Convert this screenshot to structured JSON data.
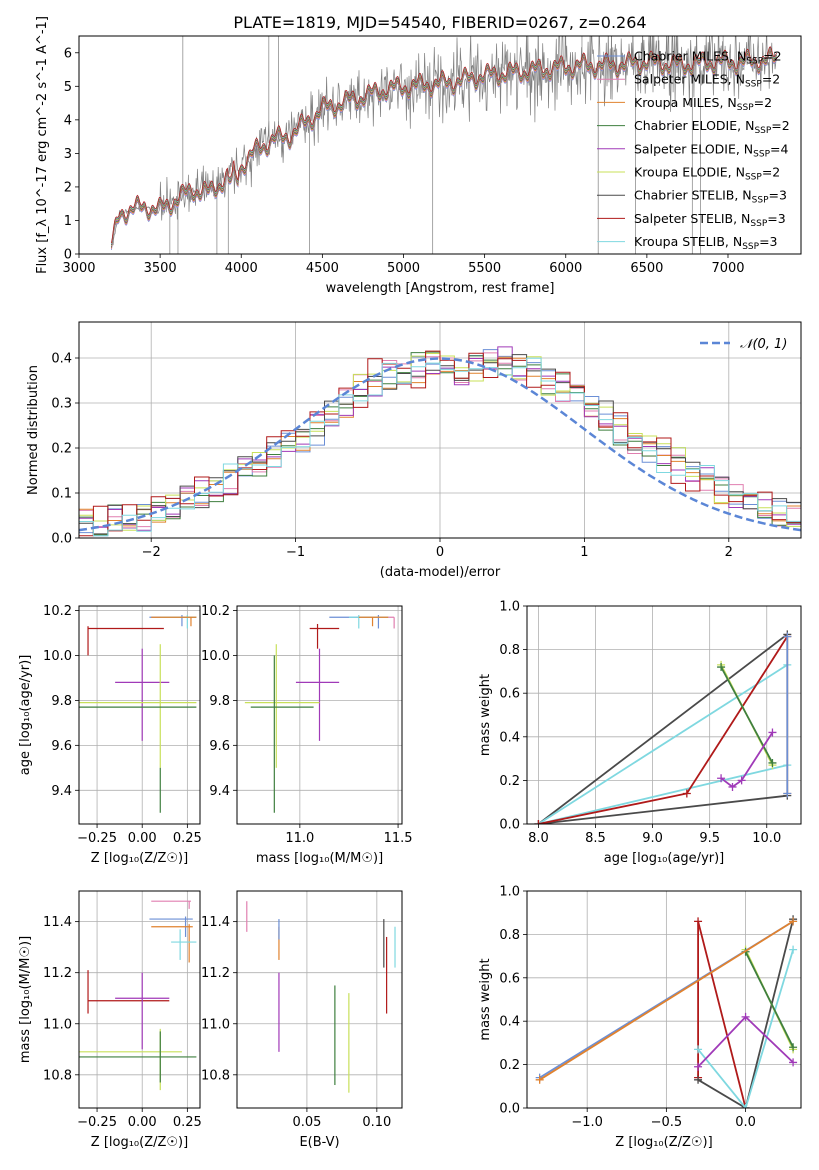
{
  "figure_title": "PLATE=1819, MJD=54540, FIBERID=0267, z=0.264",
  "colors": {
    "chabrier_miles": "#6b8fd6",
    "salpeter_miles": "#e07fb0",
    "kroupa_miles": "#e0822f",
    "chabrier_elodie": "#3f7f3f",
    "salpeter_elodie": "#a03ab8",
    "kroupa_elodie": "#c8e05a",
    "chabrier_stelib": "#4a4a4a",
    "salpeter_stelib": "#b01a1a",
    "kroupa_stelib": "#7fd8e0",
    "data": "#808080",
    "normal": "#5b86d6"
  },
  "chart_data": [
    {
      "type": "line",
      "title": "PLATE=1819, MJD=54540, FIBERID=0267, z=0.264",
      "xlabel": "wavelength [Angstrom, rest frame]",
      "ylabel": "Flux [f_λ 10^-17 erg cm^-2 s^-1 A^-1]",
      "xlim": [
        3000,
        7450
      ],
      "ylim": [
        0,
        6.5
      ],
      "xticks": [
        3000,
        3500,
        4000,
        4500,
        5000,
        5500,
        6000,
        6500,
        7000
      ],
      "yticks": [
        0,
        1,
        2,
        3,
        4,
        5,
        6
      ],
      "grid": false,
      "legend_position": "top-right",
      "series": [
        {
          "name": "Chabrier MILES, N_SSP=2",
          "key": "chabrier_miles"
        },
        {
          "name": "Salpeter MILES, N_SSP=2",
          "key": "salpeter_miles"
        },
        {
          "name": "Kroupa MILES, N_SSP=2",
          "key": "kroupa_miles"
        },
        {
          "name": "Chabrier ELODIE, N_SSP=2",
          "key": "chabrier_elodie"
        },
        {
          "name": "Salpeter ELODIE, N_SSP=4",
          "key": "salpeter_elodie"
        },
        {
          "name": "Kroupa ELODIE, N_SSP=2",
          "key": "kroupa_elodie"
        },
        {
          "name": "Chabrier STELIB, N_SSP=3",
          "key": "chabrier_stelib"
        },
        {
          "name": "Salpeter STELIB, N_SSP=3",
          "key": "salpeter_stelib"
        },
        {
          "name": "Kroupa STELIB, N_SSP=3",
          "key": "kroupa_stelib"
        }
      ],
      "continuum_knots": {
        "x": [
          3200,
          3250,
          3400,
          3500,
          3600,
          3700,
          3800,
          3900,
          4000,
          4100,
          4200,
          4300,
          4400,
          4500,
          4700,
          4900,
          5100,
          5300,
          5500,
          5700,
          5900,
          6100,
          6300,
          6500,
          6700,
          6900,
          7100,
          7300
        ],
        "y": [
          0.2,
          1.2,
          1.4,
          1.3,
          1.6,
          1.9,
          1.8,
          2.2,
          2.6,
          3.1,
          3.4,
          3.5,
          3.9,
          4.3,
          4.6,
          4.9,
          5.0,
          5.1,
          5.3,
          5.4,
          5.5,
          5.6,
          5.6,
          5.7,
          5.6,
          5.7,
          5.7,
          5.8
        ]
      }
    },
    {
      "type": "line",
      "xlabel": "(data-model)/error",
      "ylabel": "Normed distribution",
      "xlim": [
        -2.5,
        2.5
      ],
      "ylim": [
        0,
        0.48
      ],
      "xticks": [
        -2,
        -1,
        0,
        1,
        2
      ],
      "yticks": [
        0.0,
        0.1,
        0.2,
        0.3,
        0.4
      ],
      "grid": true,
      "legend_position": "top-right",
      "legend": "𝒩(0, 1)",
      "bin_width": 0.1,
      "bin_start": -2.5,
      "reference_values": [
        0.03,
        0.03,
        0.04,
        0.04,
        0.05,
        0.06,
        0.07,
        0.09,
        0.1,
        0.11,
        0.13,
        0.15,
        0.16,
        0.18,
        0.2,
        0.22,
        0.24,
        0.27,
        0.3,
        0.33,
        0.35,
        0.36,
        0.37,
        0.38,
        0.38,
        0.37,
        0.37,
        0.38,
        0.39,
        0.39,
        0.38,
        0.37,
        0.35,
        0.33,
        0.31,
        0.29,
        0.27,
        0.24,
        0.22,
        0.2,
        0.18,
        0.17,
        0.15,
        0.13,
        0.11,
        0.09,
        0.08,
        0.07,
        0.06,
        0.05
      ]
    },
    {
      "type": "scatter",
      "xlabel": "Z [log₁₀(Z/Z☉)]",
      "ylabel": "age [log₁₀(age/yr)]",
      "xlim": [
        -0.35,
        0.32
      ],
      "ylim": [
        9.25,
        10.22
      ],
      "xticks": [
        -0.25,
        0.0,
        0.25
      ],
      "xticklabels": [
        "−0.25",
        "0.00",
        "0.25"
      ],
      "yticks": [
        9.4,
        9.6,
        9.8,
        10.0,
        10.2
      ],
      "grid": true,
      "crosses": [
        {
          "key": "salpeter_stelib",
          "x": [
            -0.3,
            0.12
          ],
          "y": [
            10.12,
            10.12
          ],
          "ex": [
            -0.3,
            -0.3
          ],
          "ey": [
            10.0,
            10.13
          ]
        },
        {
          "key": "salpeter_elodie",
          "x": [
            -0.15,
            0.15
          ],
          "y": [
            9.88,
            9.88
          ],
          "ex": [
            0.0,
            0.0
          ],
          "ey": [
            9.62,
            10.03
          ]
        },
        {
          "key": "kroupa_elodie",
          "x": [
            -0.35,
            0.3
          ],
          "y": [
            9.79,
            9.79
          ],
          "ex": [
            0.1,
            0.1
          ],
          "ey": [
            9.5,
            10.05
          ]
        },
        {
          "key": "chabrier_elodie",
          "x": [
            -0.35,
            0.3
          ],
          "y": [
            9.77,
            9.77
          ],
          "ex": [
            0.1,
            0.1
          ],
          "ey": [
            9.3,
            9.5
          ]
        },
        {
          "key": "chabrier_miles",
          "x": [
            0.04,
            0.3
          ],
          "y": [
            10.17,
            10.17
          ],
          "ex": [
            0.22,
            0.22
          ],
          "ey": [
            10.13,
            10.18
          ]
        },
        {
          "key": "kroupa_stelib",
          "x": [
            0.1,
            0.3
          ],
          "y": [
            10.17,
            10.17
          ],
          "ex": [
            0.25,
            0.25
          ],
          "ey": [
            10.12,
            10.18
          ]
        },
        {
          "key": "kroupa_miles",
          "x": [
            0.05,
            0.3
          ],
          "y": [
            10.17,
            10.17
          ],
          "ex": [
            0.27,
            0.27
          ],
          "ey": [
            10.13,
            10.17
          ]
        }
      ]
    },
    {
      "type": "scatter",
      "xlabel": "mass [log₁₀(M/M☉)]",
      "xlim": [
        10.68,
        11.52
      ],
      "ylim": [
        9.25,
        10.22
      ],
      "xticks": [
        11.0,
        11.5
      ],
      "xticklabels": [
        "11.0",
        "11.5"
      ],
      "yticks": [
        9.4,
        9.6,
        9.8,
        10.0,
        10.2
      ],
      "grid": true,
      "crosses": [
        {
          "key": "salpeter_stelib",
          "x": [
            11.05,
            11.2
          ],
          "y": [
            10.12,
            10.12
          ],
          "ex": [
            11.09,
            11.09
          ],
          "ey": [
            10.03,
            10.14
          ]
        },
        {
          "key": "salpeter_elodie",
          "x": [
            10.98,
            11.2
          ],
          "y": [
            9.88,
            9.88
          ],
          "ex": [
            11.1,
            11.1
          ],
          "ey": [
            9.62,
            10.03
          ]
        },
        {
          "key": "kroupa_elodie",
          "x": [
            10.72,
            11.1
          ],
          "y": [
            9.79,
            9.79
          ],
          "ex": [
            10.88,
            10.88
          ],
          "ey": [
            9.5,
            10.05
          ]
        },
        {
          "key": "chabrier_elodie",
          "x": [
            10.75,
            11.07
          ],
          "y": [
            9.77,
            9.77
          ],
          "ex": [
            10.87,
            10.87
          ],
          "ey": [
            9.3,
            10.0
          ]
        },
        {
          "key": "chabrier_miles",
          "x": [
            11.15,
            11.45
          ],
          "y": [
            10.17,
            10.17
          ],
          "ex": [
            11.4,
            11.4
          ],
          "ey": [
            10.12,
            10.18
          ]
        },
        {
          "key": "salpeter_miles",
          "x": [
            11.3,
            11.48
          ],
          "y": [
            10.17,
            10.17
          ],
          "ex": [
            11.48,
            11.48
          ],
          "ey": [
            10.12,
            10.17
          ]
        },
        {
          "key": "kroupa_stelib",
          "x": [
            11.25,
            11.45
          ],
          "y": [
            10.17,
            10.17
          ],
          "ex": [
            11.3,
            11.3
          ],
          "ey": [
            10.12,
            10.18
          ]
        },
        {
          "key": "kroupa_miles",
          "x": [
            11.3,
            11.45
          ],
          "y": [
            10.17,
            10.17
          ],
          "ex": [
            11.37,
            11.37
          ],
          "ey": [
            10.13,
            10.17
          ]
        }
      ]
    },
    {
      "type": "line",
      "xlabel": "age [log₁₀(age/yr)]",
      "ylabel": "mass weight",
      "xlim": [
        7.9,
        10.3
      ],
      "ylim": [
        0,
        1.0
      ],
      "xticks": [
        8.0,
        8.5,
        9.0,
        9.5,
        10.0
      ],
      "xticklabels": [
        "8.0",
        "8.5",
        "9.0",
        "9.5",
        "10.0"
      ],
      "yticks": [
        0.0,
        0.2,
        0.4,
        0.6,
        0.8,
        1.0
      ],
      "grid": true,
      "series": [
        {
          "key": "chabrier_stelib",
          "x": [
            10.18,
            8.0,
            10.18
          ],
          "y": [
            0.13,
            0.0,
            0.87
          ]
        },
        {
          "key": "kroupa_stelib",
          "x": [
            10.18,
            8.0,
            10.18
          ],
          "y": [
            0.27,
            0.0,
            0.73
          ]
        },
        {
          "key": "salpeter_stelib",
          "x": [
            10.18,
            9.3,
            8.0
          ],
          "y": [
            0.86,
            0.14,
            0.0
          ]
        },
        {
          "key": "kroupa_elodie",
          "x": [
            9.6,
            10.05
          ],
          "y": [
            0.73,
            0.27
          ]
        },
        {
          "key": "chabrier_elodie",
          "x": [
            9.6,
            10.05
          ],
          "y": [
            0.72,
            0.28
          ]
        },
        {
          "key": "salpeter_elodie",
          "x": [
            9.6,
            9.7,
            9.78,
            10.05
          ],
          "y": [
            0.21,
            0.17,
            0.2,
            0.42
          ]
        },
        {
          "key": "kroupa_miles",
          "x": [
            10.18,
            10.18
          ],
          "y": [
            0.86,
            0.14
          ]
        },
        {
          "key": "chabrier_miles",
          "x": [
            10.18,
            10.18
          ],
          "y": [
            0.86,
            0.14
          ]
        }
      ]
    },
    {
      "type": "scatter",
      "xlabel": "Z [log₁₀(Z/Z☉)]",
      "ylabel": "mass [log₁₀(M/M☉)]",
      "xlim": [
        -0.35,
        0.32
      ],
      "ylim": [
        10.67,
        11.52
      ],
      "xticks": [
        -0.25,
        0.0,
        0.25
      ],
      "xticklabels": [
        "−0.25",
        "0.00",
        "0.25"
      ],
      "yticks": [
        10.8,
        11.0,
        11.2,
        11.4
      ],
      "grid": true,
      "crosses": [
        {
          "key": "salpeter_miles",
          "x": [
            0.05,
            0.27
          ],
          "y": [
            11.48,
            11.48
          ],
          "ex": [
            0.26,
            0.26
          ],
          "ey": [
            11.45,
            11.48
          ]
        },
        {
          "key": "chabrier_miles",
          "x": [
            0.04,
            0.28
          ],
          "y": [
            11.41,
            11.41
          ],
          "ex": [
            0.24,
            0.24
          ],
          "ey": [
            11.34,
            11.42
          ]
        },
        {
          "key": "kroupa_miles",
          "x": [
            0.05,
            0.28
          ],
          "y": [
            11.38,
            11.38
          ],
          "ex": [
            0.26,
            0.26
          ],
          "ey": [
            11.24,
            11.39
          ]
        },
        {
          "key": "kroupa_stelib",
          "x": [
            0.16,
            0.3
          ],
          "y": [
            11.32,
            11.32
          ],
          "ex": [
            0.21,
            0.21
          ],
          "ey": [
            11.25,
            11.37
          ]
        },
        {
          "key": "salpeter_stelib",
          "x": [
            -0.3,
            0.15
          ],
          "y": [
            11.09,
            11.09
          ],
          "ex": [
            -0.3,
            -0.3
          ],
          "ey": [
            11.04,
            11.21
          ]
        },
        {
          "key": "salpeter_elodie",
          "x": [
            -0.15,
            0.15
          ],
          "y": [
            11.1,
            11.1
          ],
          "ex": [
            0.0,
            0.0
          ],
          "ey": [
            10.9,
            11.2
          ]
        },
        {
          "key": "kroupa_elodie",
          "x": [
            -0.35,
            0.22
          ],
          "y": [
            10.89,
            10.89
          ],
          "ex": [
            0.1,
            0.1
          ],
          "ey": [
            10.74,
            10.98
          ]
        },
        {
          "key": "chabrier_elodie",
          "x": [
            -0.35,
            0.3
          ],
          "y": [
            10.87,
            10.87
          ],
          "ex": [
            0.1,
            0.1
          ],
          "ey": [
            10.77,
            10.97
          ]
        }
      ]
    },
    {
      "type": "scatter",
      "xlabel": "E(B-V)",
      "xlim": [
        0.0,
        0.118
      ],
      "ylim": [
        10.67,
        11.52
      ],
      "xticks": [
        0.05,
        0.1
      ],
      "xticklabels": [
        "0.05",
        "0.10"
      ],
      "yticks": [
        10.8,
        11.0,
        11.2,
        11.4
      ],
      "grid": true,
      "crosses": [
        {
          "key": "salpeter_miles",
          "ex": [
            0.007,
            0.007
          ],
          "ey": [
            11.36,
            11.48
          ]
        },
        {
          "key": "kroupa_miles",
          "ex": [
            0.03,
            0.03
          ],
          "ey": [
            11.25,
            11.38
          ]
        },
        {
          "key": "chabrier_miles",
          "ex": [
            0.03,
            0.03
          ],
          "ey": [
            11.33,
            11.41
          ]
        },
        {
          "key": "salpeter_elodie",
          "ex": [
            0.03,
            0.03
          ],
          "ey": [
            10.89,
            11.2
          ]
        },
        {
          "key": "chabrier_elodie",
          "ex": [
            0.07,
            0.07
          ],
          "ey": [
            10.76,
            11.15
          ]
        },
        {
          "key": "kroupa_elodie",
          "ex": [
            0.08,
            0.08
          ],
          "ey": [
            10.73,
            11.12
          ]
        },
        {
          "key": "chabrier_stelib",
          "ex": [
            0.105,
            0.105
          ],
          "ey": [
            11.22,
            11.41
          ]
        },
        {
          "key": "salpeter_stelib",
          "ex": [
            0.107,
            0.107
          ],
          "ey": [
            11.04,
            11.34
          ]
        },
        {
          "key": "kroupa_stelib",
          "ex": [
            0.113,
            0.113
          ],
          "ey": [
            11.22,
            11.38
          ]
        }
      ]
    },
    {
      "type": "line",
      "xlabel": "Z [log₁₀(Z/Z☉)]",
      "ylabel": "mass weight",
      "xlim": [
        -1.38,
        0.35
      ],
      "ylim": [
        0,
        1.0
      ],
      "xticks": [
        -1.0,
        -0.5,
        0.0
      ],
      "xticklabels": [
        "−1.0",
        "−0.5",
        "0.0"
      ],
      "yticks": [
        0.0,
        0.2,
        0.4,
        0.6,
        0.8,
        1.0
      ],
      "grid": true,
      "series": [
        {
          "key": "salpeter_stelib",
          "x": [
            -0.3,
            -0.3,
            0.0
          ],
          "y": [
            0.14,
            0.86,
            0.0
          ]
        },
        {
          "key": "chabrier_stelib",
          "x": [
            -0.3,
            0.0,
            0.3
          ],
          "y": [
            0.13,
            0.0,
            0.87
          ]
        },
        {
          "key": "kroupa_stelib",
          "x": [
            -0.3,
            0.0,
            0.3
          ],
          "y": [
            0.27,
            0.0,
            0.73
          ]
        },
        {
          "key": "salpeter_elodie",
          "x": [
            -0.3,
            0.0,
            0.3
          ],
          "y": [
            0.19,
            0.42,
            0.21
          ]
        },
        {
          "key": "kroupa_elodie",
          "x": [
            0.0,
            0.3
          ],
          "y": [
            0.73,
            0.27
          ]
        },
        {
          "key": "chabrier_elodie",
          "x": [
            0.0,
            0.3
          ],
          "y": [
            0.72,
            0.28
          ]
        },
        {
          "key": "chabrier_miles",
          "x": [
            -1.3,
            0.3
          ],
          "y": [
            0.14,
            0.86
          ]
        },
        {
          "key": "kroupa_miles",
          "x": [
            -1.3,
            0.3
          ],
          "y": [
            0.13,
            0.86
          ]
        }
      ]
    }
  ]
}
